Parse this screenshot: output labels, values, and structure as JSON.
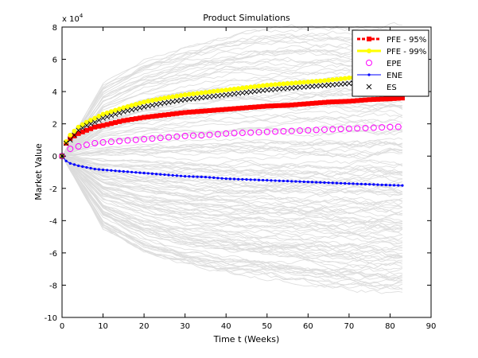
{
  "chart_data": {
    "type": "line",
    "title": "Product Simulations",
    "xlabel": "Time t (Weeks)",
    "ylabel": "Market Value",
    "y_multiplier": "x 10",
    "y_multiplier_exp": "4",
    "xlim": [
      0,
      90
    ],
    "ylim": [
      -10,
      8
    ],
    "x_ticks": [
      "0",
      "10",
      "20",
      "30",
      "40",
      "50",
      "60",
      "70",
      "80",
      "90"
    ],
    "y_ticks": [
      "-10",
      "-8",
      "-6",
      "-4",
      "-2",
      "0",
      "2",
      "4",
      "6",
      "8"
    ],
    "grid": false,
    "legend_position": "top-right",
    "background_simulations": {
      "description_color": "#dcdcdc",
      "spread_upper": [
        0,
        4.5,
        6.0,
        6.9,
        7.5,
        7.9,
        8.0,
        8.0,
        8.0
      ],
      "spread_lower": [
        0,
        -4.5,
        -6.0,
        -6.8,
        -7.3,
        -7.6,
        -7.9,
        -8.1,
        -8.3
      ],
      "x": [
        0,
        10,
        20,
        30,
        40,
        50,
        60,
        70,
        83
      ]
    },
    "series": [
      {
        "name": "PFE - 95%",
        "color": "#ff0000",
        "marker": "square",
        "x": [
          0,
          1,
          2,
          4,
          6,
          8,
          10,
          15,
          20,
          25,
          30,
          35,
          40,
          45,
          50,
          55,
          60,
          65,
          70,
          75,
          80,
          83
        ],
        "values": [
          0,
          0.8,
          1.1,
          1.4,
          1.6,
          1.8,
          1.9,
          2.2,
          2.4,
          2.55,
          2.7,
          2.8,
          2.9,
          3.0,
          3.1,
          3.15,
          3.25,
          3.35,
          3.4,
          3.5,
          3.55,
          3.6
        ]
      },
      {
        "name": "PFE - 99%",
        "color": "#ffff00",
        "marker": "circle",
        "x": [
          0,
          1,
          2,
          4,
          6,
          8,
          10,
          15,
          20,
          25,
          30,
          35,
          40,
          45,
          50,
          55,
          60,
          65,
          70,
          75,
          80,
          83
        ],
        "values": [
          0,
          0.9,
          1.3,
          1.8,
          2.1,
          2.35,
          2.6,
          3.0,
          3.35,
          3.6,
          3.8,
          3.95,
          4.1,
          4.25,
          4.4,
          4.5,
          4.6,
          4.7,
          4.85,
          4.95,
          5.05,
          5.1
        ]
      },
      {
        "name": "EPE",
        "color": "#ff00ff",
        "marker": "circle-open",
        "x": [
          0,
          1,
          2,
          4,
          6,
          8,
          10,
          15,
          20,
          25,
          30,
          35,
          40,
          45,
          50,
          55,
          60,
          65,
          70,
          75,
          80,
          83
        ],
        "values": [
          0,
          0.3,
          0.45,
          0.6,
          0.7,
          0.8,
          0.85,
          0.95,
          1.05,
          1.15,
          1.25,
          1.3,
          1.4,
          1.45,
          1.5,
          1.55,
          1.6,
          1.65,
          1.7,
          1.75,
          1.8,
          1.82
        ]
      },
      {
        "name": "ENE",
        "color": "#0000ff",
        "marker": "dot",
        "x": [
          0,
          1,
          2,
          4,
          6,
          8,
          10,
          15,
          20,
          25,
          30,
          35,
          40,
          45,
          50,
          55,
          60,
          65,
          70,
          75,
          80,
          83
        ],
        "values": [
          0,
          -0.3,
          -0.45,
          -0.6,
          -0.7,
          -0.8,
          -0.85,
          -0.95,
          -1.05,
          -1.15,
          -1.25,
          -1.3,
          -1.4,
          -1.45,
          -1.5,
          -1.55,
          -1.6,
          -1.65,
          -1.7,
          -1.75,
          -1.8,
          -1.82
        ]
      },
      {
        "name": "ES",
        "color": "#000000",
        "marker": "x",
        "x": [
          0,
          1,
          2,
          4,
          6,
          8,
          10,
          15,
          20,
          25,
          30,
          35,
          40,
          45,
          50,
          55,
          60,
          65,
          70,
          75,
          80,
          83
        ],
        "values": [
          0,
          0.8,
          1.0,
          1.6,
          1.9,
          2.1,
          2.35,
          2.75,
          3.05,
          3.3,
          3.5,
          3.65,
          3.8,
          3.95,
          4.1,
          4.2,
          4.3,
          4.4,
          4.5,
          4.6,
          4.7,
          4.75
        ]
      }
    ]
  }
}
